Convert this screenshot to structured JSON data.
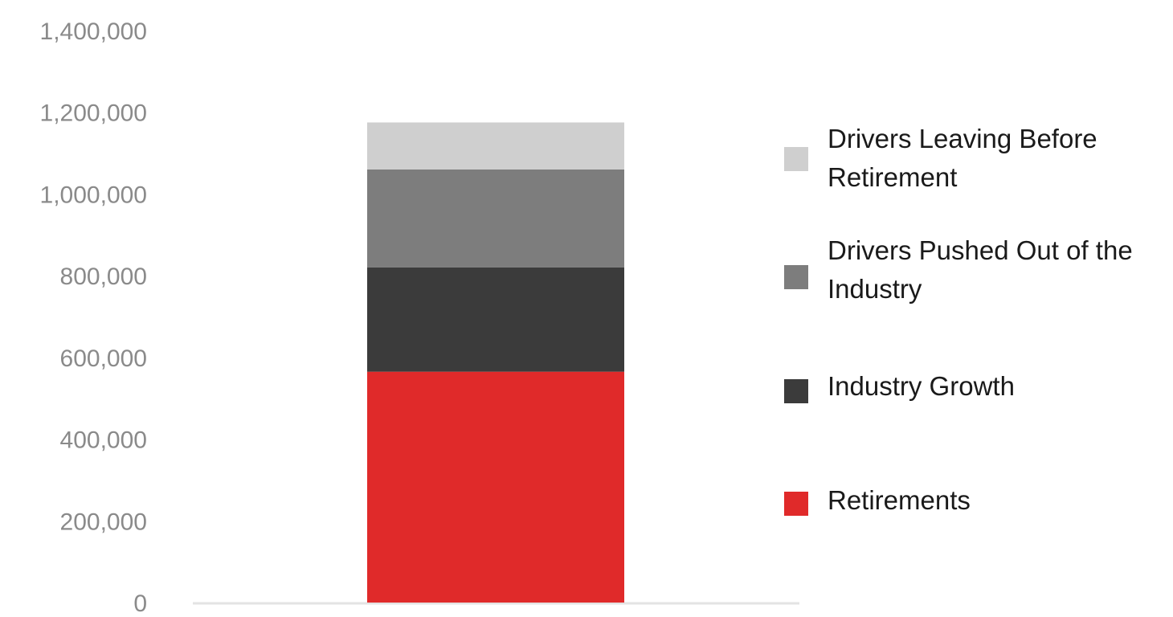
{
  "chart_data": {
    "type": "bar",
    "stacked": true,
    "categories": [
      ""
    ],
    "ylim": [
      0,
      1400000
    ],
    "yticks": [
      0,
      200000,
      400000,
      600000,
      800000,
      1000000,
      1200000,
      1400000
    ],
    "ytick_labels": [
      "0",
      "200,000",
      "400,000",
      "600,000",
      "800,000",
      "1,000,000",
      "1,200,000",
      "1,400,000"
    ],
    "grid": false,
    "legend_position": "right",
    "series": [
      {
        "name": "Retirements",
        "values": [
          565000
        ],
        "color": "#e02a2a"
      },
      {
        "name": "Industry Growth",
        "values": [
          255000
        ],
        "color": "#3b3b3b"
      },
      {
        "name": "Drivers Pushed Out of the Industry",
        "values": [
          240000
        ],
        "color": "#7d7d7d"
      },
      {
        "name": "Drivers Leaving Before Retirement",
        "values": [
          115000
        ],
        "color": "#cfcfcf"
      }
    ],
    "legend_order": [
      3,
      2,
      1,
      0
    ],
    "legend_labels": [
      [
        "Drivers Leaving Before",
        "Retirement"
      ],
      [
        "Drivers Pushed Out of the",
        "Industry"
      ],
      [
        "Industry Growth"
      ],
      [
        "Retirements"
      ]
    ]
  }
}
